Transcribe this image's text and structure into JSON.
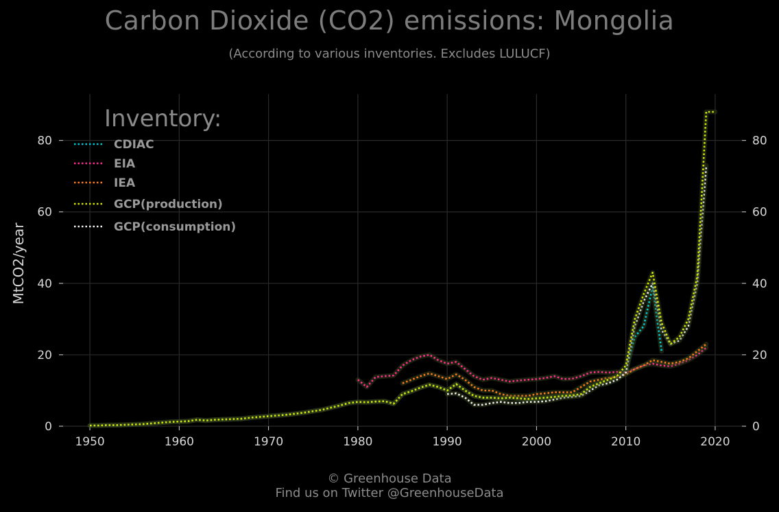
{
  "header": {
    "title": "Carbon Dioxide (CO2) emissions: Mongolia",
    "subtitle": "(According to various inventories. Excludes LULUCF)"
  },
  "footer": {
    "line1": "© Greenhouse Data",
    "line2": "Find us on Twitter @GreenhouseData"
  },
  "colors": {
    "background": "#000000",
    "grid": "#2a2a2a",
    "text": "#8a8a8a",
    "tick": "#d8d8d8"
  },
  "chart_data": {
    "type": "line",
    "title": "Carbon Dioxide (CO2) emissions: Mongolia",
    "subtitle": "(According to various inventories. Excludes LULUCF)",
    "xlabel": "",
    "ylabel": "MtCO2/year",
    "xlim": [
      1947,
      2023
    ],
    "ylim": [
      0,
      93
    ],
    "xticks": [
      1950,
      1960,
      1970,
      1980,
      1990,
      2000,
      2010,
      2020
    ],
    "yticks": [
      0,
      20,
      40,
      60,
      80
    ],
    "grid": true,
    "right_axis": true,
    "legend_title": "Inventory:",
    "legend_position": "top-left",
    "series": [
      {
        "name": "CDIAC",
        "color": "#00c8d2",
        "x": [
          1950,
          1951,
          1952,
          1953,
          1954,
          1955,
          1956,
          1957,
          1958,
          1959,
          1960,
          1961,
          1962,
          1963,
          1964,
          1965,
          1966,
          1967,
          1968,
          1969,
          1970,
          1971,
          1972,
          1973,
          1974,
          1975,
          1976,
          1977,
          1978,
          1979,
          1980,
          1981,
          1982,
          1983,
          1984,
          1985,
          1986,
          1987,
          1988,
          1989,
          1990,
          1991,
          1992,
          1993,
          1994,
          1995,
          1996,
          1997,
          1998,
          1999,
          2000,
          2001,
          2002,
          2003,
          2004,
          2005,
          2006,
          2007,
          2008,
          2009,
          2010,
          2011,
          2012,
          2013,
          2014
        ],
        "values": [
          0.2,
          0.2,
          0.3,
          0.3,
          0.4,
          0.5,
          0.6,
          0.8,
          1.0,
          1.2,
          1.3,
          1.4,
          1.8,
          1.6,
          1.8,
          1.9,
          2.0,
          2.1,
          2.4,
          2.6,
          2.8,
          3.0,
          3.2,
          3.5,
          3.8,
          4.2,
          4.6,
          5.2,
          5.8,
          6.5,
          6.8,
          6.7,
          6.9,
          7.0,
          6.3,
          9.0,
          9.8,
          10.8,
          11.6,
          11.0,
          10.0,
          11.8,
          10.0,
          8.5,
          8.0,
          8.0,
          7.8,
          8.0,
          7.8,
          7.6,
          7.8,
          8.0,
          8.2,
          8.5,
          8.6,
          9.0,
          11.0,
          12.0,
          13.0,
          14.0,
          15.5,
          25.0,
          28.0,
          39.0,
          21.0
        ]
      },
      {
        "name": "EIA",
        "color": "#ff2d8e",
        "x": [
          1980,
          1981,
          1982,
          1983,
          1984,
          1985,
          1986,
          1987,
          1988,
          1989,
          1990,
          1991,
          1992,
          1993,
          1994,
          1995,
          1996,
          1997,
          1998,
          1999,
          2000,
          2001,
          2002,
          2003,
          2004,
          2005,
          2006,
          2007,
          2008,
          2009,
          2010,
          2011,
          2012,
          2013,
          2014,
          2015,
          2016,
          2017,
          2018,
          2019
        ],
        "values": [
          13.0,
          11.0,
          13.8,
          14.0,
          14.2,
          17.0,
          18.5,
          19.5,
          20.0,
          18.5,
          17.5,
          18.0,
          16.0,
          14.0,
          13.0,
          13.5,
          13.0,
          12.5,
          12.8,
          13.0,
          13.2,
          13.5,
          14.0,
          13.2,
          13.3,
          14.0,
          15.0,
          15.2,
          15.0,
          15.2,
          15.0,
          16.0,
          17.0,
          17.5,
          17.0,
          16.8,
          17.5,
          18.5,
          20.0,
          22.0
        ]
      },
      {
        "name": "IEA",
        "color": "#ff7a1a",
        "x": [
          1985,
          1986,
          1987,
          1988,
          1989,
          1990,
          1991,
          1992,
          1993,
          1994,
          1995,
          1996,
          1997,
          1998,
          1999,
          2000,
          2001,
          2002,
          2003,
          2004,
          2005,
          2006,
          2007,
          2008,
          2009,
          2010,
          2011,
          2012,
          2013,
          2014,
          2015,
          2016,
          2017,
          2018,
          2019
        ],
        "values": [
          12.0,
          13.0,
          14.0,
          14.8,
          14.0,
          13.2,
          14.5,
          13.0,
          11.0,
          10.0,
          10.0,
          9.0,
          8.5,
          8.5,
          8.5,
          9.0,
          9.2,
          9.5,
          9.5,
          9.5,
          11.0,
          12.5,
          13.0,
          13.5,
          13.8,
          14.5,
          16.0,
          17.0,
          18.5,
          18.0,
          17.5,
          18.0,
          19.0,
          21.0,
          23.0
        ]
      },
      {
        "name": "GCP(production)",
        "color": "#d4e600",
        "x": [
          1950,
          1951,
          1952,
          1953,
          1954,
          1955,
          1956,
          1957,
          1958,
          1959,
          1960,
          1961,
          1962,
          1963,
          1964,
          1965,
          1966,
          1967,
          1968,
          1969,
          1970,
          1971,
          1972,
          1973,
          1974,
          1975,
          1976,
          1977,
          1978,
          1979,
          1980,
          1981,
          1982,
          1983,
          1984,
          1985,
          1986,
          1987,
          1988,
          1989,
          1990,
          1991,
          1992,
          1993,
          1994,
          1995,
          1996,
          1997,
          1998,
          1999,
          2000,
          2001,
          2002,
          2003,
          2004,
          2005,
          2006,
          2007,
          2008,
          2009,
          2010,
          2011,
          2012,
          2013,
          2014,
          2015,
          2016,
          2017,
          2018,
          2019,
          2020
        ],
        "values": [
          0.2,
          0.2,
          0.3,
          0.3,
          0.4,
          0.5,
          0.6,
          0.8,
          1.0,
          1.2,
          1.3,
          1.4,
          1.8,
          1.6,
          1.8,
          1.9,
          2.0,
          2.1,
          2.4,
          2.6,
          2.8,
          3.0,
          3.2,
          3.5,
          3.8,
          4.2,
          4.6,
          5.2,
          5.8,
          6.5,
          6.8,
          6.7,
          6.9,
          7.0,
          6.3,
          9.0,
          9.8,
          10.8,
          11.6,
          11.0,
          10.0,
          11.8,
          10.0,
          8.5,
          8.0,
          8.0,
          7.8,
          8.0,
          7.8,
          7.6,
          7.8,
          8.0,
          8.2,
          8.5,
          8.6,
          9.0,
          11.0,
          12.0,
          13.0,
          14.0,
          17.0,
          30.0,
          37.0,
          43.0,
          29.0,
          23.0,
          25.0,
          30.0,
          42.0,
          88.0,
          88.0
        ]
      },
      {
        "name": "GCP(consumption)",
        "color": "#f0f0f0",
        "x": [
          1990,
          1991,
          1992,
          1993,
          1994,
          1995,
          1996,
          1997,
          1998,
          1999,
          2000,
          2001,
          2002,
          2003,
          2004,
          2005,
          2006,
          2007,
          2008,
          2009,
          2010,
          2011,
          2012,
          2013,
          2014,
          2015,
          2016,
          2017,
          2018,
          2019
        ],
        "values": [
          9.0,
          9.2,
          8.0,
          6.0,
          6.0,
          6.5,
          6.8,
          6.5,
          6.5,
          6.8,
          6.8,
          7.0,
          7.5,
          8.0,
          8.2,
          8.5,
          10.0,
          11.5,
          12.0,
          13.0,
          15.0,
          28.0,
          35.0,
          40.0,
          27.0,
          23.0,
          24.0,
          28.0,
          40.0,
          73.0
        ]
      }
    ]
  }
}
